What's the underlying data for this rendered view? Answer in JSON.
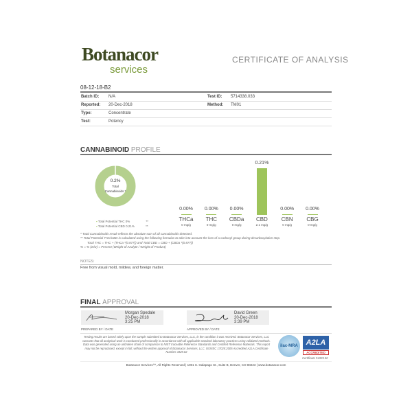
{
  "header": {
    "logo_top": "Botanacor",
    "logo_bottom": "services",
    "title": "CERTIFICATE OF ANALYSIS"
  },
  "sample": {
    "id": "08-12-18-B2",
    "rows": [
      {
        "label": "Batch ID:",
        "value": "N/A",
        "label2": "Test ID:",
        "value2": "5714338.033"
      },
      {
        "label": "Reported:",
        "value": "20-Dec-2018",
        "label2": "Method:",
        "value2": "TM01"
      },
      {
        "label": "Type:",
        "value": "Concentrate"
      },
      {
        "label": "Test:",
        "value": "Potency"
      }
    ]
  },
  "profile": {
    "heading_bold": "CANNABINOID",
    "heading_light": "PROFILE",
    "donut": {
      "value": "0.2%",
      "label1": "Total",
      "label2": "Cannabinoids *",
      "fill_percent": 100,
      "color": "#b5d08e"
    },
    "legend": [
      {
        "label": "Total Potential THC",
        "value": "0%",
        "mark": "**"
      },
      {
        "label": "Total Potential CBD",
        "value": "0.21%",
        "mark": "**"
      }
    ],
    "chart_data": {
      "type": "bar",
      "categories": [
        "THCa",
        "THC",
        "CBDa",
        "CBD",
        "CBN",
        "CBG"
      ],
      "values": [
        0,
        0,
        0,
        0.21,
        0,
        0
      ],
      "data_labels": [
        "0.00%",
        "0.00%",
        "0.00%",
        "0.21%",
        "0.00%",
        "0.00%"
      ],
      "sublabels": [
        "0 mg/g",
        "0 mg/g",
        "0 mg/g",
        "2.1 mg/g",
        "0 mg/g",
        "0 mg/g"
      ],
      "color": "#9ec45b"
    },
    "footnotes": [
      "* Total Cannabinoids result reflects the absolute sum of all cannabinoids detected.",
      "** Total Potential THC/CBD is calculated using the following formulas to take into account the loss of a carboxyl group during decarboxylation step.",
      "Total THC = THC + (THCa *(0.877)) and Total CBD = CBD + (CBDa *(0.877))",
      "% = % (w/w) = Percent (Weight of Analyte / Weight of Product)"
    ]
  },
  "notes": {
    "label": "NOTES:",
    "text": "Free from visual mold, mildew, and foreign matter."
  },
  "approval": {
    "heading_bold": "FINAL",
    "heading_light": "APPROVAL",
    "prepared": {
      "name": "Morgan Spedale",
      "date": "20-Dec-2018",
      "time": "3:25 PM",
      "caption": "PREPARED BY / DATE"
    },
    "approved": {
      "name": "David Green",
      "date": "20-Dec-2018",
      "time": "3:39 PM",
      "caption": "APPROVED BY / DATE"
    },
    "disclaimer": "Testing results are based solely upon the sample submitted to Botanacor Services, LLC, in the condition it was received. Botanacor Services, LLC warrants that all analytical work is conducted professionally in accordance with all applicable standard laboratory practices using validated methods. Data was generated using an unbroken chain of comparison to NIST traceable Reference Standards and Certified Reference Materials. This report may not be reproduced, except in full, without the written approval of Botanacor Services, LLC. ISO/IEC 17025:2005 Accredited A2LA Certificate Number 4329.02",
    "ilac": "ilac-MRA",
    "a2la": "A2LA",
    "accredited": "ACCREDITED",
    "certificate": "Certificate #4329.02"
  },
  "footer": "Botanacor Services™, All Rights Reserved | 1001 S. Galapago St., Suite B, Denver, CO 80223 | www.botanacor.com"
}
